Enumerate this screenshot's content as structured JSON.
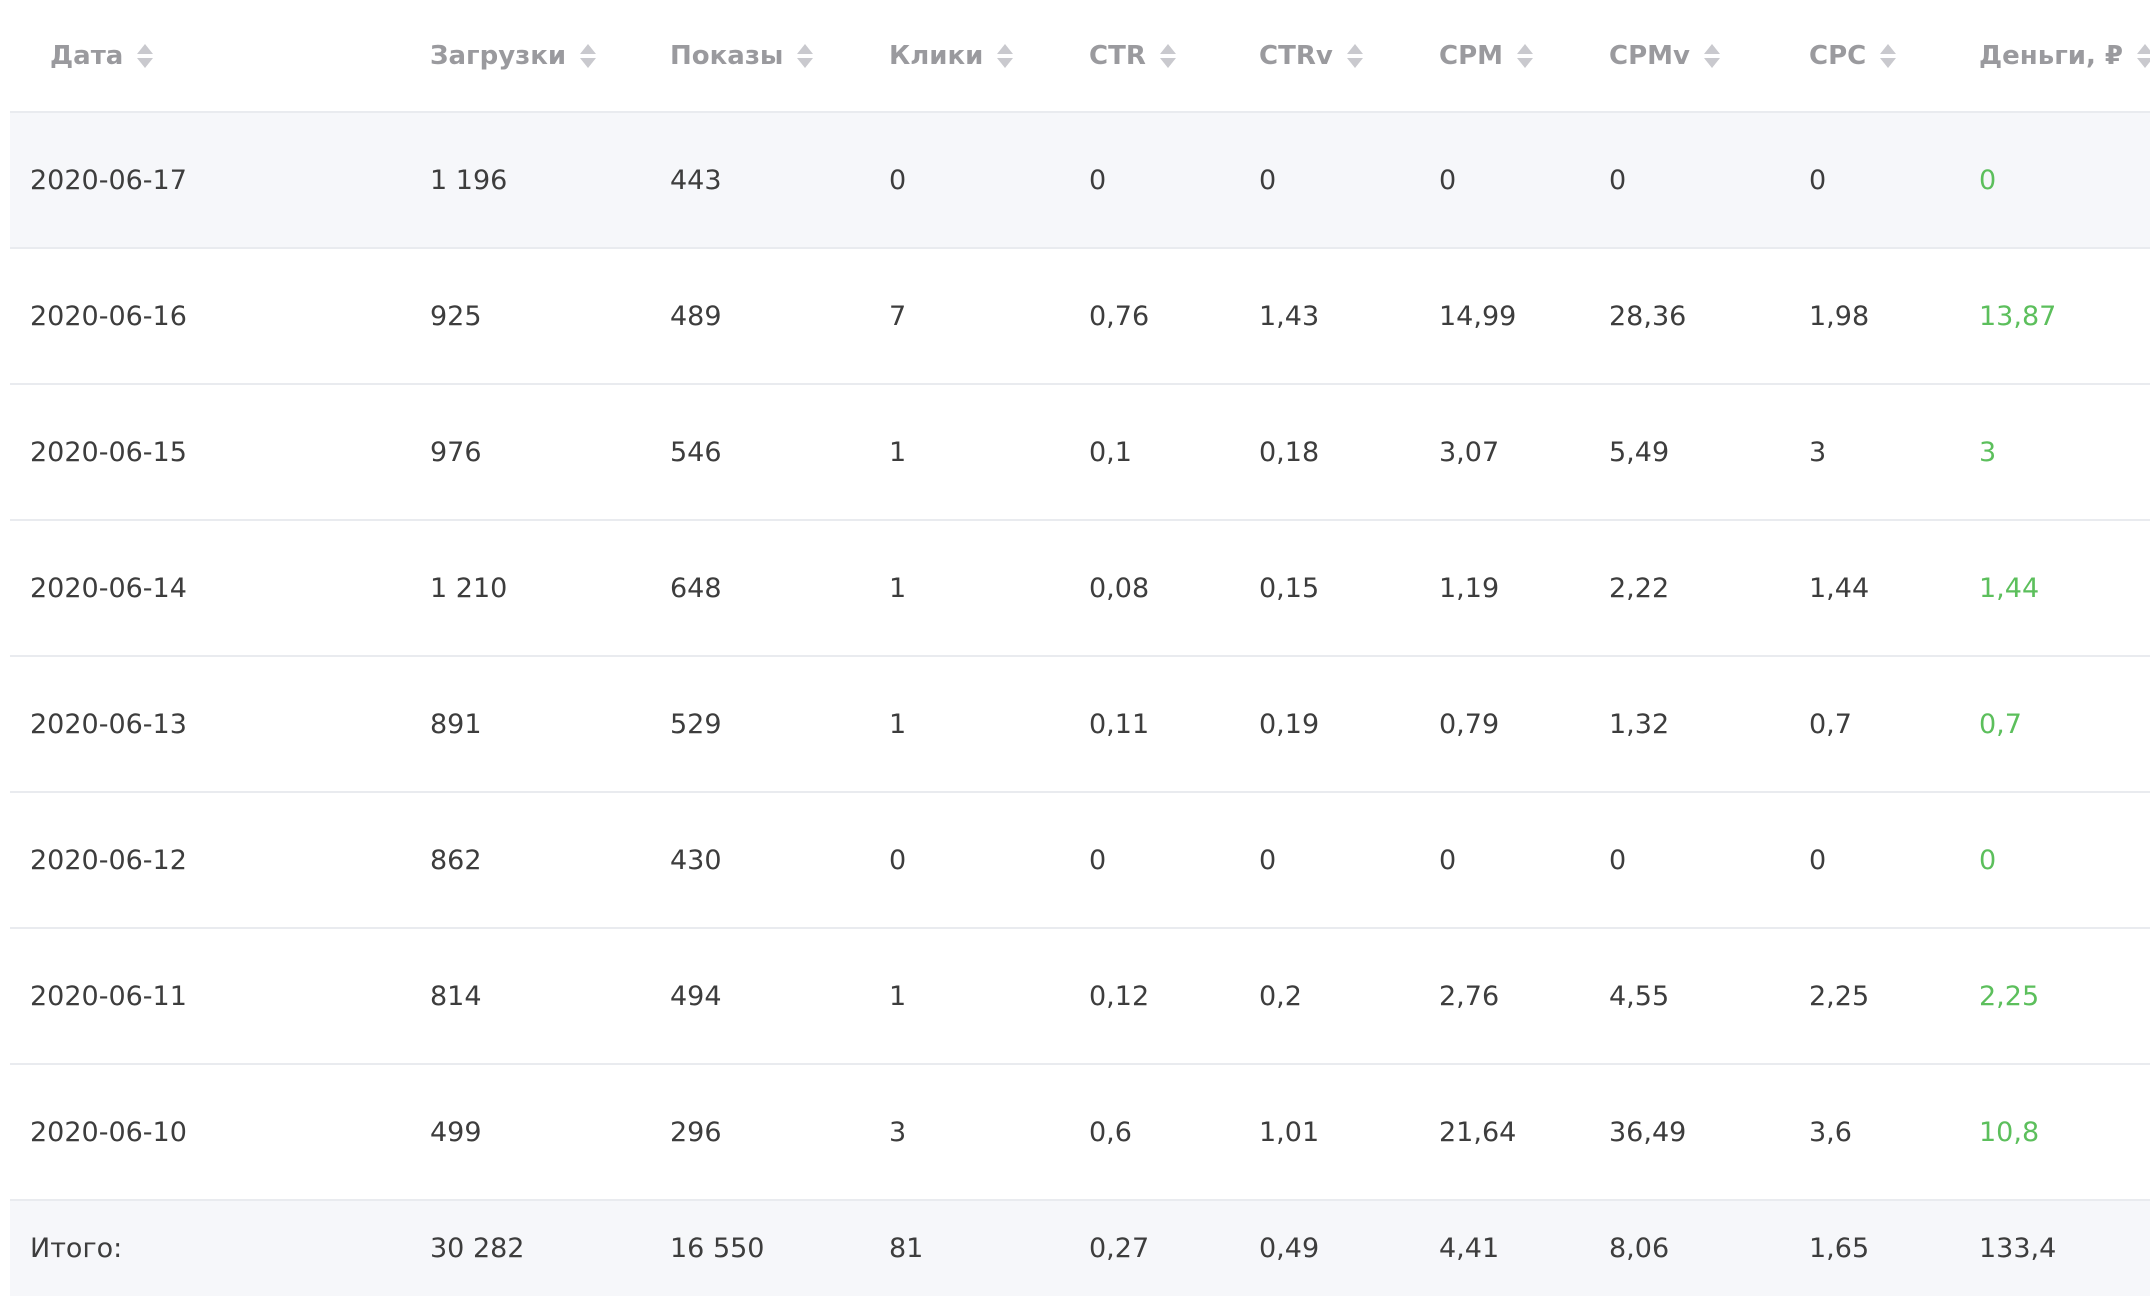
{
  "table": {
    "headers": [
      {
        "label": "Дата"
      },
      {
        "label": "Загрузки"
      },
      {
        "label": "Показы"
      },
      {
        "label": "Клики"
      },
      {
        "label": "CTR"
      },
      {
        "label": "CTRv"
      },
      {
        "label": "CPM"
      },
      {
        "label": "CPMv"
      },
      {
        "label": "CPC"
      },
      {
        "label": "Деньги, ₽"
      }
    ],
    "rows": [
      {
        "date": "2020-06-17",
        "loads": "1 196",
        "impressions": "443",
        "clicks": "0",
        "ctr": "0",
        "ctrv": "0",
        "cpm": "0",
        "cpmv": "0",
        "cpc": "0",
        "money": "0"
      },
      {
        "date": "2020-06-16",
        "loads": "925",
        "impressions": "489",
        "clicks": "7",
        "ctr": "0,76",
        "ctrv": "1,43",
        "cpm": "14,99",
        "cpmv": "28,36",
        "cpc": "1,98",
        "money": "13,87"
      },
      {
        "date": "2020-06-15",
        "loads": "976",
        "impressions": "546",
        "clicks": "1",
        "ctr": "0,1",
        "ctrv": "0,18",
        "cpm": "3,07",
        "cpmv": "5,49",
        "cpc": "3",
        "money": "3"
      },
      {
        "date": "2020-06-14",
        "loads": "1 210",
        "impressions": "648",
        "clicks": "1",
        "ctr": "0,08",
        "ctrv": "0,15",
        "cpm": "1,19",
        "cpmv": "2,22",
        "cpc": "1,44",
        "money": "1,44"
      },
      {
        "date": "2020-06-13",
        "loads": "891",
        "impressions": "529",
        "clicks": "1",
        "ctr": "0,11",
        "ctrv": "0,19",
        "cpm": "0,79",
        "cpmv": "1,32",
        "cpc": "0,7",
        "money": "0,7"
      },
      {
        "date": "2020-06-12",
        "loads": "862",
        "impressions": "430",
        "clicks": "0",
        "ctr": "0",
        "ctrv": "0",
        "cpm": "0",
        "cpmv": "0",
        "cpc": "0",
        "money": "0"
      },
      {
        "date": "2020-06-11",
        "loads": "814",
        "impressions": "494",
        "clicks": "1",
        "ctr": "0,12",
        "ctrv": "0,2",
        "cpm": "2,76",
        "cpmv": "4,55",
        "cpc": "2,25",
        "money": "2,25"
      },
      {
        "date": "2020-06-10",
        "loads": "499",
        "impressions": "296",
        "clicks": "3",
        "ctr": "0,6",
        "ctrv": "1,01",
        "cpm": "21,64",
        "cpmv": "36,49",
        "cpc": "3,6",
        "money": "10,8"
      }
    ],
    "total": {
      "label": "Итого:",
      "loads": "30 282",
      "impressions": "16 550",
      "clicks": "81",
      "ctr": "0,27",
      "ctrv": "0,49",
      "cpm": "4,41",
      "cpmv": "8,06",
      "cpc": "1,65",
      "money": "133,4"
    }
  },
  "colors": {
    "header_text": "#9a9a9e",
    "money_text": "#5cbf5c",
    "highlight_row_bg": "#f6f7fa"
  },
  "icons": {
    "sort": "sort-icon"
  }
}
